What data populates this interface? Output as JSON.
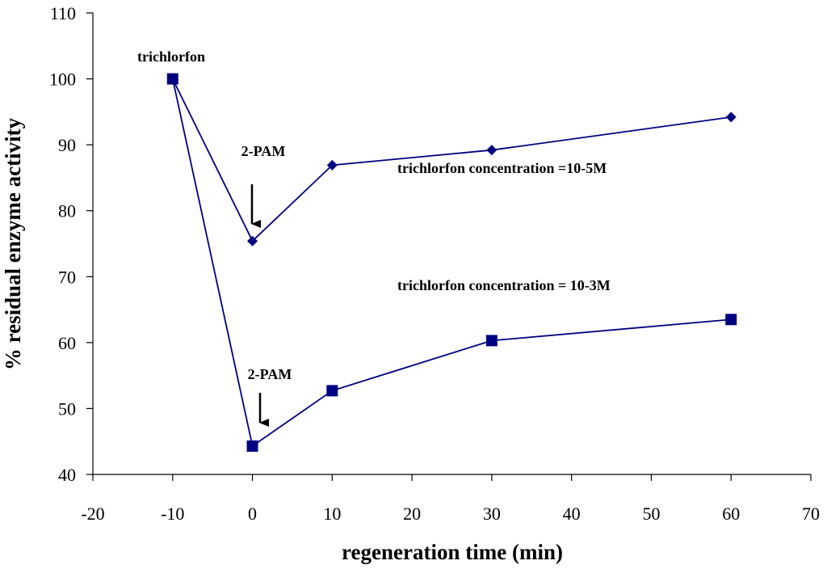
{
  "chart_data": {
    "type": "line",
    "title": "",
    "xlabel": "regeneration time (min)",
    "ylabel": "% residual enzyme activity",
    "xlim": [
      -20,
      70
    ],
    "ylim": [
      40,
      110
    ],
    "xticks": [
      -20,
      -10,
      0,
      10,
      20,
      30,
      40,
      50,
      60,
      70
    ],
    "yticks": [
      40,
      50,
      60,
      70,
      80,
      90,
      100,
      110
    ],
    "grid": false,
    "legend": "none",
    "colors": {
      "series": "#000080",
      "axis": "#000000",
      "arrow": "#000000"
    },
    "series": [
      {
        "name": "trichlorfon concentration =10-5M",
        "marker": "diamond",
        "x": [
          -10,
          0,
          10,
          30,
          60
        ],
        "y": [
          100,
          75.4,
          86.9,
          89.2,
          94.2
        ]
      },
      {
        "name": "trichlorfon concentration = 10-3M",
        "marker": "square",
        "x": [
          -10,
          0,
          10,
          30,
          60
        ],
        "y": [
          100,
          44.3,
          52.7,
          60.3,
          63.5
        ]
      }
    ],
    "annotations": [
      {
        "id": "trichlorfon",
        "text": "trichlorfon"
      },
      {
        "id": "pam_upper",
        "text": "2-PAM",
        "arrow_to": {
          "x": 0,
          "y": 78
        }
      },
      {
        "id": "pam_lower",
        "text": "2-PAM",
        "arrow_to": {
          "x": 1,
          "y": 47.5
        }
      },
      {
        "id": "label_upper",
        "text": "trichlorfon concentration =10-5M"
      },
      {
        "id": "label_lower",
        "text": "trichlorfon concentration = 10-3M"
      }
    ]
  }
}
